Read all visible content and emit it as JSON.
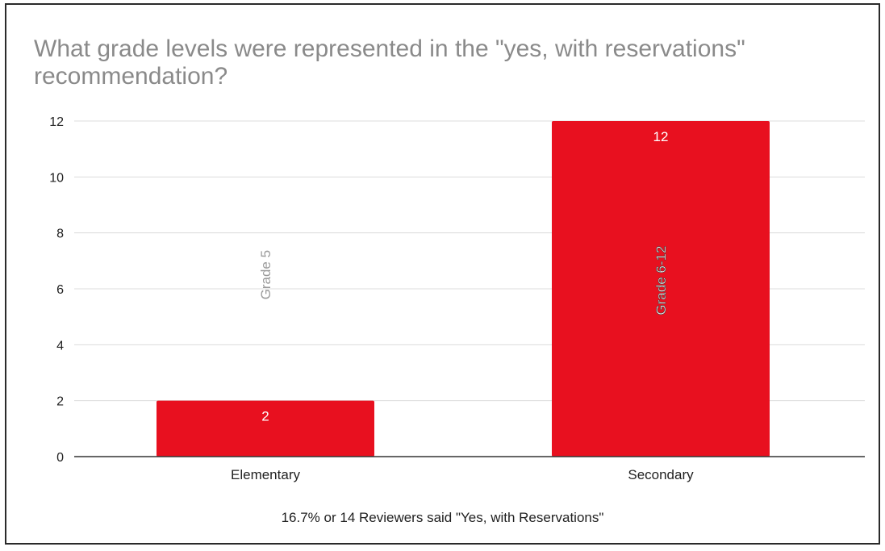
{
  "chart_data": {
    "type": "bar",
    "title": "What grade levels were represented in the \"yes, with reservations\" recommendation?",
    "categories": [
      "Elementary",
      "Secondary"
    ],
    "values": [
      2,
      12
    ],
    "bar_labels": [
      "Grade 5",
      "Grade 6-12"
    ],
    "data_labels": [
      "2",
      "12"
    ],
    "ylim": [
      0,
      12
    ],
    "yticks": [
      0,
      2,
      4,
      6,
      8,
      10,
      12
    ],
    "grid": true,
    "bar_color": "#e8101f",
    "footnote": "16.7% or 14 Reviewers said \"Yes, with Reservations\""
  }
}
